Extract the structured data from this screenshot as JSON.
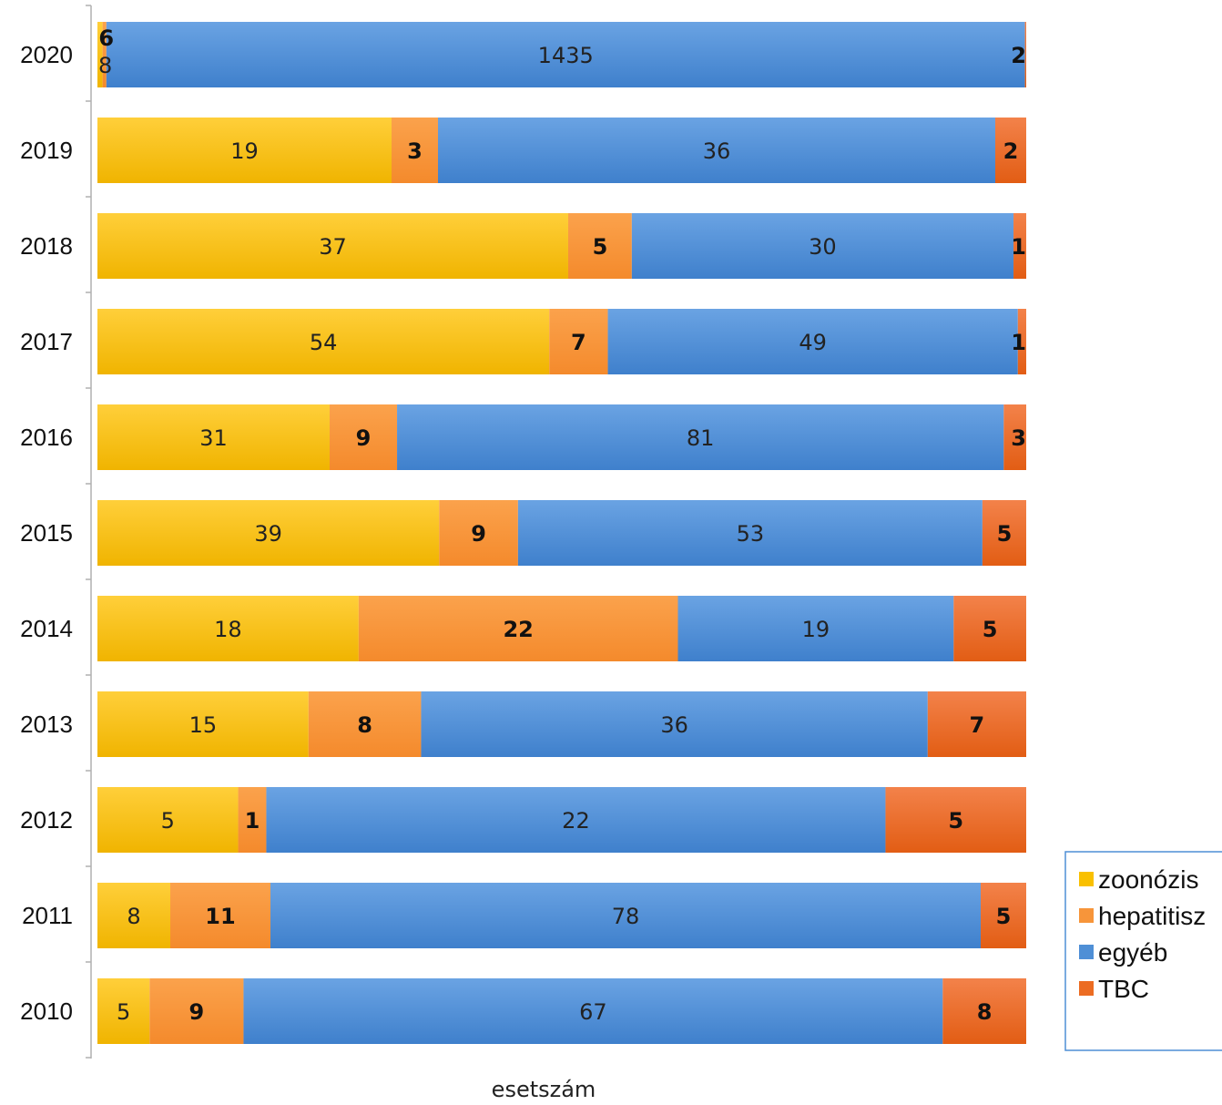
{
  "chart_data": {
    "type": "bar",
    "orientation": "horizontal",
    "stacking": "percent",
    "categories": [
      "2020",
      "2019",
      "2018",
      "2017",
      "2016",
      "2015",
      "2014",
      "2013",
      "2012",
      "2011",
      "2010"
    ],
    "series": [
      {
        "name": "zoonózis",
        "color": "#f9c000",
        "values": [
          8,
          19,
          37,
          54,
          31,
          39,
          18,
          15,
          5,
          8,
          5
        ]
      },
      {
        "name": "hepatitisz",
        "color": "#f7953a",
        "values": [
          6,
          3,
          5,
          7,
          9,
          9,
          22,
          8,
          1,
          11,
          9
        ]
      },
      {
        "name": "egyéb",
        "color": "#4f8fd6",
        "values": [
          1435,
          36,
          30,
          49,
          81,
          53,
          19,
          36,
          22,
          78,
          67
        ]
      },
      {
        "name": "TBC",
        "color": "#ec6c22",
        "values": [
          2,
          2,
          1,
          1,
          3,
          5,
          5,
          7,
          5,
          5,
          8
        ]
      }
    ],
    "xlabel": "esetszám",
    "ylabel": "",
    "title": "",
    "legend_position": "right-bottom",
    "grid": false
  }
}
